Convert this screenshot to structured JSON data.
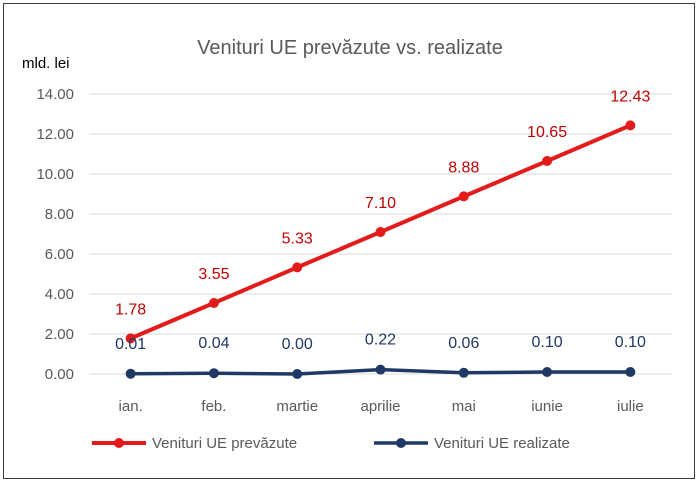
{
  "chart_data": {
    "type": "line",
    "title": "Venituri UE prevăzute vs. realizate",
    "unit_label": "mld. lei",
    "categories": [
      "ian.",
      "feb.",
      "martie",
      "aprilie",
      "mai",
      "iunie",
      "iulie"
    ],
    "ylim": [
      0,
      14
    ],
    "yticks": [
      "0.00",
      "2.00",
      "4.00",
      "6.00",
      "8.00",
      "10.00",
      "12.00",
      "14.00"
    ],
    "grid": true,
    "legend_position": "bottom",
    "series": [
      {
        "name": "Venituri UE prevăzute",
        "color": "#e31b1b",
        "label_color": "#c00000",
        "values": [
          1.78,
          3.55,
          5.33,
          7.1,
          8.88,
          10.65,
          12.43
        ],
        "labels": [
          "1.78",
          "3.55",
          "5.33",
          "7.10",
          "8.88",
          "10.65",
          "12.43"
        ]
      },
      {
        "name": "Venituri UE realizate",
        "color": "#1f3864",
        "label_color": "#1f3864",
        "values": [
          0.01,
          0.04,
          0.0,
          0.22,
          0.06,
          0.1,
          0.1
        ],
        "labels": [
          "0.01",
          "0.04",
          "0.00",
          "0.22",
          "0.06",
          "0.10",
          "0.10"
        ]
      }
    ]
  }
}
